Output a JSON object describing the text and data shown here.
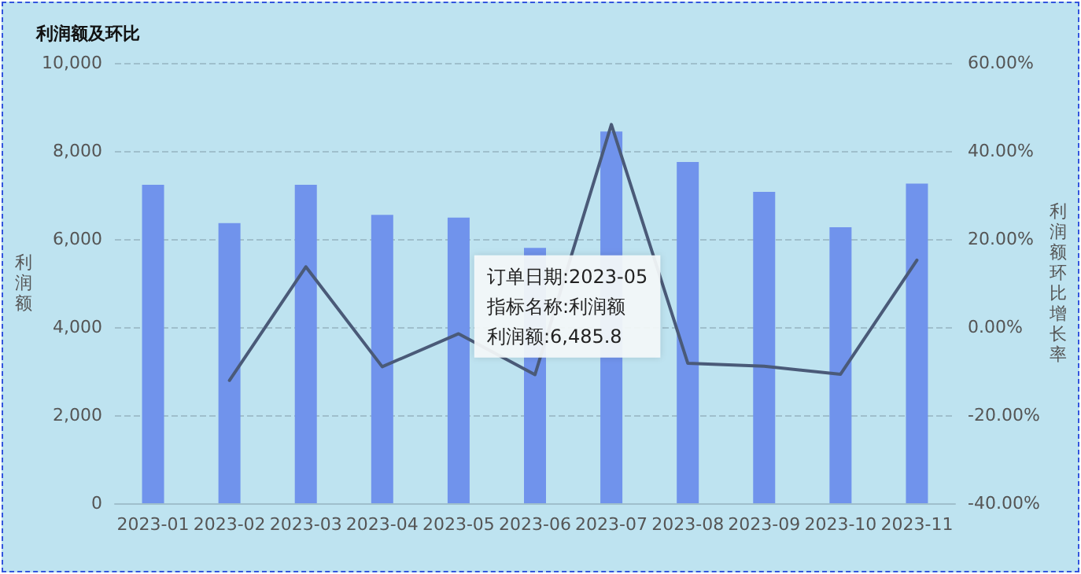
{
  "chart_data": {
    "type": "bar",
    "title": "利润额及环比",
    "ylabel": "利润额",
    "y2label": "利润额环比增长率",
    "categories": [
      "2023-01",
      "2023-02",
      "2023-03",
      "2023-04",
      "2023-05",
      "2023-06",
      "2023-07",
      "2023-08",
      "2023-09",
      "2023-10",
      "2023-11"
    ],
    "series": [
      {
        "color": "#7093ec",
        "values": [
          7230,
          6360,
          7230,
          6550,
          6485.8,
          5800,
          8440,
          7750,
          7070,
          6270,
          7260
        ]
      },
      {
        "type": "line",
        "axis": "y2",
        "color": "#4a5a78",
        "values": [
          null,
          -12.1,
          13.7,
          -9.0,
          -1.5,
          -10.8,
          46,
          -8.2,
          -8.9,
          -10.7,
          15.2
        ]
      }
    ],
    "ylim": [
      0,
      10000
    ],
    "yticks": [
      0,
      {
        "value": 2000,
        "label": "2,000"
      },
      {
        "value": 4000,
        "label": "4,000"
      },
      {
        "value": 6000,
        "label": "6,000"
      },
      {
        "value": 8000,
        "label": "8,000"
      },
      {
        "value": 10000,
        "label": "10,000"
      }
    ],
    "y2lim": [
      -40,
      60
    ],
    "y2ticks": [
      {
        "value": -40,
        "label": "-40.00%"
      },
      {
        "value": -20,
        "label": "-20.00%"
      },
      {
        "value": 0,
        "label": "0.00%"
      },
      {
        "value": 20,
        "label": "20.00%"
      },
      {
        "value": 40,
        "label": "40.00%"
      },
      {
        "value": 60,
        "label": "60.00%"
      }
    ],
    "grid": "y",
    "marker": "none",
    "line_style": "solid",
    "annotations": [
      {
        "text": "订单日期:2023-05",
        "x": "2023-05",
        "y": 6485.8
      },
      "指标名称:利润额",
      "利润额:6,485.8"
    ]
  }
}
